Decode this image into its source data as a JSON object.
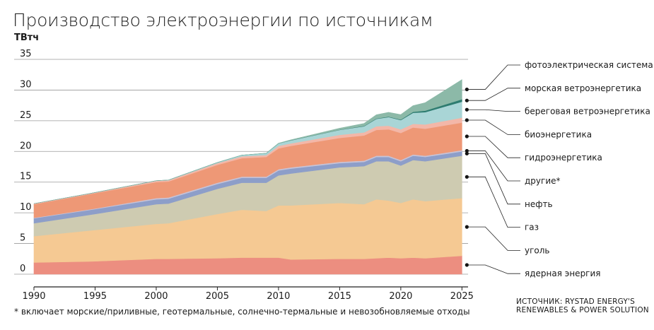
{
  "title": "Производство электроэнергии по источникам",
  "unit": "ТВтч",
  "footnote": "* включает морские/приливные, геотермальные, солнечно-термальные и невозобновляемые отходы",
  "source_line1": "ИСТОЧНИК: RYSTAD ENERGY'S",
  "source_line2": "RENEWABLES & POWER SOLUTION",
  "chart_data": {
    "type": "area",
    "stacked": true,
    "x": [
      1990,
      1995,
      2000,
      2001,
      2005,
      2007,
      2009,
      2010,
      2011,
      2015,
      2017,
      2018,
      2019,
      2020,
      2021,
      2022,
      2025
    ],
    "xticks": [
      1990,
      1995,
      2000,
      2005,
      2010,
      2015,
      2020,
      2025
    ],
    "yticks": [
      0,
      5,
      10,
      15,
      20,
      25,
      30,
      35
    ],
    "ylim": [
      0,
      35
    ],
    "xlim": [
      1990,
      2025.5
    ],
    "grid": true,
    "legend_placement": "right",
    "series": [
      {
        "name": "ядерная энергия",
        "color": "#ec8e80",
        "values": [
          1.9,
          2.1,
          2.5,
          2.5,
          2.6,
          2.7,
          2.7,
          2.7,
          2.4,
          2.5,
          2.5,
          2.6,
          2.7,
          2.6,
          2.7,
          2.6,
          3.0
        ]
      },
      {
        "name": "уголь",
        "color": "#f5c993",
        "values": [
          4.3,
          5.1,
          5.7,
          5.8,
          7.2,
          7.8,
          7.6,
          8.5,
          8.8,
          9.1,
          8.9,
          9.6,
          9.3,
          9.0,
          9.5,
          9.3,
          9.4
        ]
      },
      {
        "name": "газ",
        "color": "#cecbb1",
        "values": [
          2.1,
          2.6,
          3.2,
          3.2,
          4.1,
          4.4,
          4.6,
          4.9,
          5.2,
          5.8,
          6.2,
          6.2,
          6.4,
          6.1,
          6.4,
          6.5,
          6.9
        ]
      },
      {
        "name": "нефть",
        "color": "#8d9ec9",
        "values": [
          0.8,
          0.8,
          0.8,
          0.8,
          0.8,
          0.8,
          0.8,
          0.8,
          0.8,
          0.7,
          0.7,
          0.7,
          0.7,
          0.7,
          0.7,
          0.7,
          0.7
        ]
      },
      {
        "name": "другие*",
        "color": "#c7c3d7",
        "values": [
          0.1,
          0.1,
          0.2,
          0.2,
          0.2,
          0.2,
          0.2,
          0.2,
          0.2,
          0.2,
          0.2,
          0.2,
          0.2,
          0.2,
          0.2,
          0.2,
          0.2
        ]
      },
      {
        "name": "гидроэнергетика",
        "color": "#ee9876",
        "values": [
          2.2,
          2.5,
          2.6,
          2.6,
          2.9,
          3.0,
          3.2,
          3.4,
          3.5,
          3.9,
          4.1,
          4.2,
          4.3,
          4.4,
          4.4,
          4.4,
          4.5
        ]
      },
      {
        "name": "биоэнергетика",
        "color": "#f3b7a8",
        "values": [
          0.1,
          0.1,
          0.2,
          0.2,
          0.3,
          0.3,
          0.3,
          0.4,
          0.4,
          0.5,
          0.5,
          0.6,
          0.6,
          0.6,
          0.6,
          0.7,
          0.8
        ]
      },
      {
        "name": "береговая ветроэнергетика",
        "color": "#a9d5d6",
        "values": [
          0.0,
          0.0,
          0.03,
          0.04,
          0.1,
          0.2,
          0.3,
          0.4,
          0.5,
          0.8,
          1.0,
          1.2,
          1.4,
          1.5,
          1.8,
          2.0,
          2.6
        ]
      },
      {
        "name": "морская ветроэнергетика",
        "color": "#2e7c70",
        "values": [
          0.0,
          0.0,
          0.0,
          0.0,
          0.0,
          0.0,
          0.0,
          0.01,
          0.02,
          0.04,
          0.06,
          0.07,
          0.08,
          0.1,
          0.15,
          0.25,
          0.4
        ]
      },
      {
        "name": "фотоэлектрическая система",
        "color": "#8cb9a8",
        "values": [
          0.0,
          0.0,
          0.0,
          0.0,
          0.0,
          0.0,
          0.02,
          0.03,
          0.07,
          0.25,
          0.4,
          0.6,
          0.7,
          0.8,
          1.0,
          1.3,
          3.2
        ]
      }
    ]
  }
}
